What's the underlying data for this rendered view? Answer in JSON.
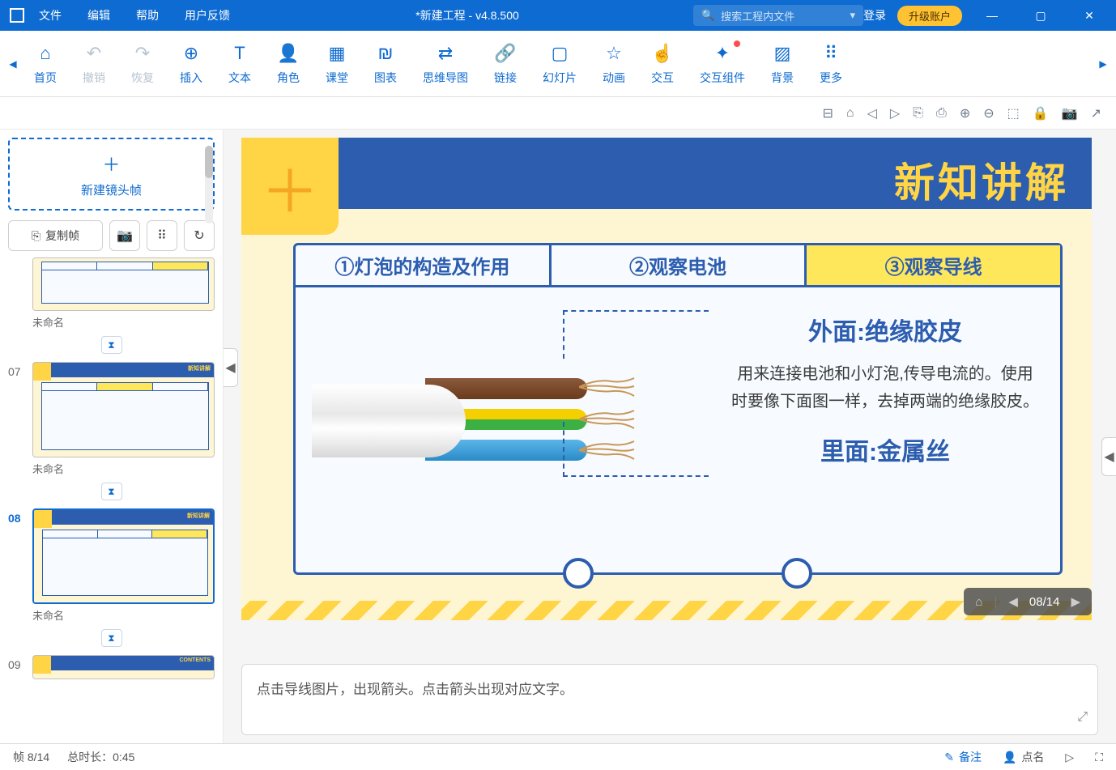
{
  "titlebar": {
    "menus": [
      "文件",
      "编辑",
      "帮助",
      "用户反馈"
    ],
    "title": "*新建工程 - v4.8.500",
    "search_placeholder": "搜索工程内文件",
    "login": "登录",
    "upgrade": "升级账户"
  },
  "toolbar": [
    {
      "label": "首页",
      "icon": "⌂",
      "disabled": false
    },
    {
      "label": "撤销",
      "icon": "↶",
      "disabled": true
    },
    {
      "label": "恢复",
      "icon": "↷",
      "disabled": true
    },
    {
      "label": "插入",
      "icon": "⊕",
      "disabled": false
    },
    {
      "label": "文本",
      "icon": "T",
      "disabled": false
    },
    {
      "label": "角色",
      "icon": "👤",
      "disabled": false
    },
    {
      "label": "课堂",
      "icon": "▦",
      "disabled": false
    },
    {
      "label": "图表",
      "icon": "₪",
      "disabled": false
    },
    {
      "label": "思维导图",
      "icon": "⇄",
      "disabled": false
    },
    {
      "label": "链接",
      "icon": "🔗",
      "disabled": false
    },
    {
      "label": "幻灯片",
      "icon": "▢",
      "disabled": false
    },
    {
      "label": "动画",
      "icon": "☆",
      "disabled": false
    },
    {
      "label": "交互",
      "icon": "☝",
      "disabled": false
    },
    {
      "label": "交互组件",
      "icon": "✦",
      "disabled": false,
      "notif": true
    },
    {
      "label": "背景",
      "icon": "▨",
      "disabled": false
    },
    {
      "label": "更多",
      "icon": "⠿",
      "disabled": false
    }
  ],
  "sidebar": {
    "new_frame": "新建镜头帧",
    "copy_frame": "复制帧",
    "thumbs": [
      {
        "num": "",
        "label": "未命名",
        "selected": false
      },
      {
        "num": "07",
        "label": "未命名",
        "selected": false
      },
      {
        "num": "08",
        "label": "未命名",
        "selected": true
      },
      {
        "num": "09",
        "label": "",
        "selected": false,
        "title": "CONTENTS"
      }
    ]
  },
  "slide": {
    "title": "新知讲解",
    "tabs": [
      "①灯泡的构造及作用",
      "②观察电池",
      "③观察导线"
    ],
    "active_tab": 2,
    "label_outer": "外面:绝缘胶皮",
    "desc": "用来连接电池和小灯泡,传导电流的。使用时要像下面图一样，去掉两端的绝缘胶皮。",
    "label_inner": "里面:金属丝",
    "wire_colors": {
      "outer": "#f0f0f0",
      "brown": "#6b3a1c",
      "yg_y": "#f5d000",
      "yg_g": "#3cb043",
      "blue": "#2a8bc8",
      "copper": "#c99756"
    }
  },
  "page_nav": {
    "current": "08/14"
  },
  "notes": "点击导线图片，出现箭头。点击箭头出现对应文字。",
  "statusbar": {
    "frame": "帧 8/14",
    "duration": "总时长：0:45",
    "notes_btn": "备注",
    "names_btn": "点名"
  }
}
